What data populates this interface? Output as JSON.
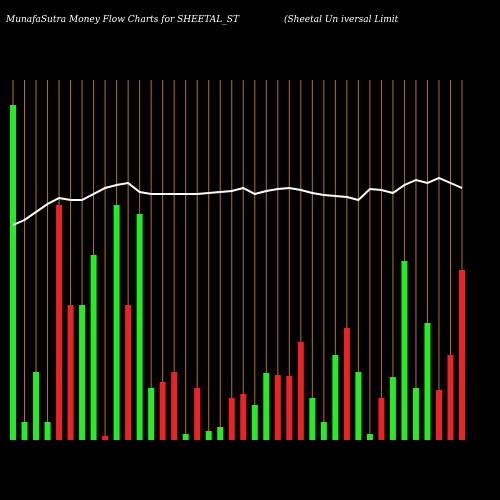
{
  "chart_data": {
    "type": "bar",
    "title": "MunafaSutra  Money Flow  Charts for SHEETAL_ST",
    "subtitle": "(Sheetal Un                    iversal Limit",
    "values": [
      335,
      18,
      68,
      18,
      235,
      135,
      135,
      185,
      4,
      235,
      135,
      226,
      52,
      58,
      68,
      6,
      52,
      9,
      13,
      42,
      46,
      35,
      67,
      65,
      64,
      98,
      42,
      18,
      85,
      112,
      68,
      6,
      42,
      63,
      179,
      52,
      117,
      50,
      85,
      170
    ],
    "colors": [
      "#22ee22",
      "#22ee22",
      "#22ee22",
      "#22ee22",
      "#ee2222",
      "#ee2222",
      "#22ee22",
      "#22ee22",
      "#ee2222",
      "#22ee22",
      "#ee2222",
      "#22ee22",
      "#22ee22",
      "#ee2222",
      "#ee2222",
      "#22ee22",
      "#ee2222",
      "#22ee22",
      "#22ee22",
      "#ee2222",
      "#ee2222",
      "#22ee22",
      "#22ee22",
      "#ee2222",
      "#ee2222",
      "#ee2222",
      "#22ee22",
      "#22ee22",
      "#22ee22",
      "#ee2222",
      "#22ee22",
      "#22ee22",
      "#ee2222",
      "#22ee22",
      "#22ee22",
      "#22ee22",
      "#22ee22",
      "#ee2222",
      "#ee2222",
      "#ee2222"
    ],
    "line": {
      "color": "#ffffff",
      "values": [
        215,
        220,
        228,
        236,
        242,
        240,
        240,
        246,
        252,
        255,
        257,
        248,
        246,
        246,
        246,
        246,
        246,
        247,
        248,
        249,
        252,
        246,
        249,
        251,
        252,
        250,
        247,
        245,
        244,
        243,
        240,
        251,
        250,
        247,
        255,
        260,
        257,
        262,
        257,
        252
      ]
    },
    "gridline_color": "#b8730f",
    "ylim": [
      0,
      340
    ]
  }
}
